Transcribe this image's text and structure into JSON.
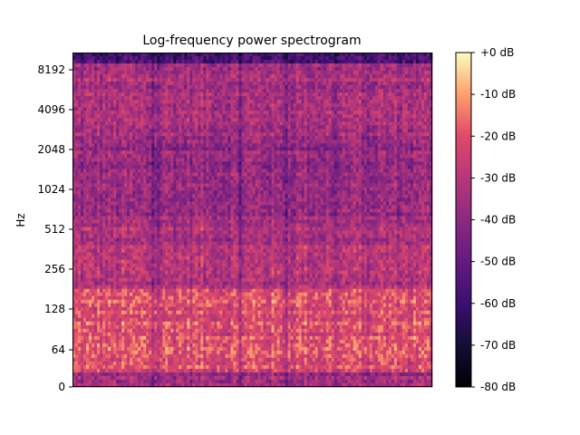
{
  "chart_data": {
    "type": "heatmap",
    "title": "Log-frequency power spectrogram",
    "ylabel": "Hz",
    "xlabel": "",
    "y_scale": "log2 (symlog, 0 at bottom)",
    "y_ticks": [
      "0",
      "64",
      "128",
      "256",
      "512",
      "1024",
      "2048",
      "4096",
      "8192"
    ],
    "colorbar": {
      "colormap": "magma",
      "ticks": [
        "+0 dB",
        "-10 dB",
        "-20 dB",
        "-30 dB",
        "-40 dB",
        "-50 dB",
        "-60 dB",
        "-70 dB",
        "-80 dB"
      ],
      "range_db": [
        -80,
        0
      ]
    },
    "legend": "colorbar right",
    "grid": false
  }
}
